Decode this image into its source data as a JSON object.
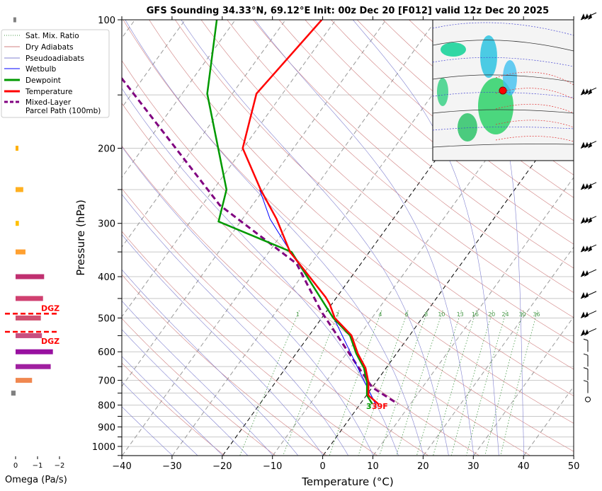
{
  "chart_data": {
    "type": "line",
    "title": "GFS Sounding 34.33°N, 69.12°E Init: 00z Dec 20 [F012] valid 12z Dec 20 2025",
    "xlabel": "Temperature (°C)",
    "ylabel": "Pressure (hPa)",
    "xlim": [
      -40,
      50
    ],
    "ylim": [
      1050,
      100
    ],
    "xticks": [
      "−40",
      "−30",
      "−20",
      "−10",
      "0",
      "10",
      "20",
      "30",
      "40",
      "50"
    ],
    "yticks": [
      "100",
      "200",
      "300",
      "400",
      "500",
      "600",
      "700",
      "800",
      "900",
      "1000"
    ],
    "legend": {
      "placement": "left",
      "entries": [
        "Sat. Mix. Ratio",
        "Dry Adiabats",
        "Pseudoadiabats",
        "Wetbulb",
        "Dewpoint",
        "Temperature",
        "Mixed-Layer",
        "Parcel Path (100mb)"
      ]
    },
    "mixing_ratio_labels": [
      "1",
      "2",
      "4",
      "6",
      "8",
      "10",
      "13",
      "16",
      "20",
      "24",
      "30",
      "36"
    ],
    "series": [
      {
        "name": "Temperature",
        "color": "#ff0000",
        "p": [
          100,
          149,
          200,
          250,
          293,
          350,
          447,
          464,
          500,
          549,
          606,
          655,
          709,
          759,
          795
        ],
        "t": [
          -62.8,
          -65.2,
          -60.1,
          -50.6,
          -43.2,
          -35.8,
          -22.2,
          -20.4,
          -17.4,
          -11.6,
          -7.7,
          -4.1,
          -1.4,
          0.4,
          3.6
        ]
      },
      {
        "name": "Dewpoint",
        "color": "#009900",
        "p": [
          100,
          149,
          250,
          297,
          350,
          500,
          549,
          606,
          655,
          709,
          759,
          795
        ],
        "t": [
          -83.7,
          -75,
          -57.4,
          -54.4,
          -35.5,
          -17.7,
          -11.9,
          -8,
          -4.4,
          -1.7,
          0.1,
          2.4
        ]
      },
      {
        "name": "Wetbulb",
        "color": "#0000ff",
        "p": [
          250,
          293,
          350,
          500,
          795
        ],
        "t": [
          -50.8,
          -44.5,
          -35.7,
          -17.6,
          3
        ]
      },
      {
        "name": "Mixed-Layer Parcel Path (100mb)",
        "color": "#800080",
        "p": [
          137,
          272,
          373,
          482,
          630,
          727,
          795
        ],
        "t": [
          -94.3,
          -56.5,
          -32.8,
          -21.1,
          -7.4,
          0,
          7.5
        ]
      }
    ],
    "surface_labels": {
      "dewpoint": "3",
      "temperature": "39F"
    },
    "omega": {
      "xlabel": "Omega (Pa/s)",
      "xticks": [
        "0",
        "−1",
        "−2"
      ],
      "p": [
        100,
        200,
        250,
        300,
        350,
        400,
        450,
        500,
        550,
        600,
        650,
        700,
        750
      ],
      "values": [
        0.1,
        -0.1,
        -0.35,
        -0.15,
        -0.45,
        -1.3,
        -1.25,
        -1.15,
        -1.2,
        -1.7,
        -1.6,
        -0.75,
        0.2
      ],
      "colors": [
        "#808080",
        "#ffb000",
        "#ffb020",
        "#ffc000",
        "#ffa030",
        "#c03070",
        "#d04070",
        "#d05070",
        "#c85080",
        "#9810a0",
        "#a020a0",
        "#f08850",
        "#808080"
      ]
    },
    "dgz": {
      "label": "DGZ",
      "p_top": 494,
      "p_bottom": 545,
      "color": "#ff0000"
    },
    "wind_barb_levels": [
      100,
      150,
      200,
      250,
      300,
      350,
      400,
      450,
      500,
      550,
      600,
      650,
      700,
      750,
      800
    ]
  }
}
